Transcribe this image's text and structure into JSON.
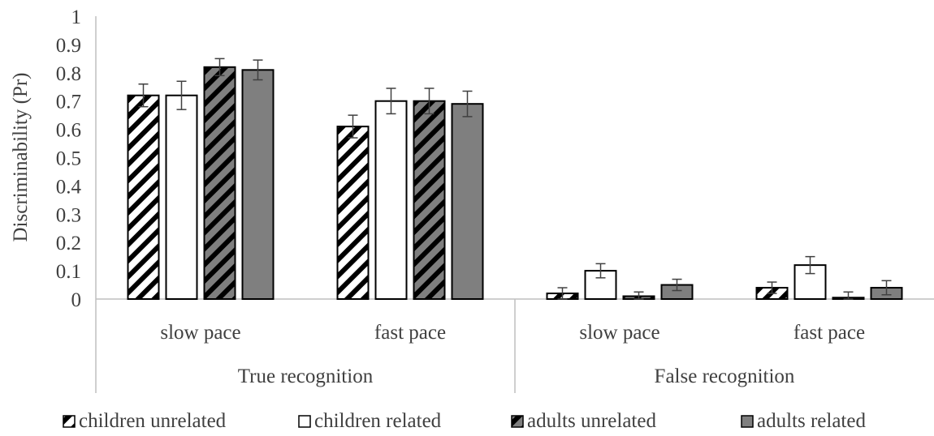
{
  "chart_data": {
    "type": "bar",
    "title": "",
    "xlabel": "",
    "ylabel": "Discriminability (Pr)",
    "ylim": [
      0,
      1
    ],
    "yticks": [
      "0",
      "0.1",
      "0.2",
      "0.3",
      "0.4",
      "0.5",
      "0.6",
      "0.7",
      "0.8",
      "0.9",
      "1"
    ],
    "grid": false,
    "legend_position": "bottom",
    "groups": [
      {
        "label": "True recognition",
        "categories": [
          "slow pace",
          "fast pace"
        ]
      },
      {
        "label": "False recognition",
        "categories": [
          "slow pace",
          "fast pace"
        ]
      }
    ],
    "categories": [
      "slow pace",
      "fast pace",
      "slow pace",
      "fast pace"
    ],
    "series": [
      {
        "name": "children unrelated",
        "pattern": "hatch-white",
        "values": [
          0.72,
          0.61,
          0.02,
          0.04
        ],
        "errors": [
          0.04,
          0.04,
          0.02,
          0.02
        ]
      },
      {
        "name": "children related",
        "pattern": "white",
        "values": [
          0.72,
          0.7,
          0.1,
          0.12
        ],
        "errors": [
          0.05,
          0.045,
          0.025,
          0.03
        ]
      },
      {
        "name": "adults unrelated",
        "pattern": "hatch-gray",
        "values": [
          0.82,
          0.7,
          0.01,
          0.005
        ],
        "errors": [
          0.03,
          0.045,
          0.015,
          0.02
        ]
      },
      {
        "name": "adults related",
        "pattern": "gray",
        "values": [
          0.81,
          0.69,
          0.05,
          0.04
        ],
        "errors": [
          0.035,
          0.045,
          0.02,
          0.025
        ]
      }
    ],
    "colors": {
      "gray_fill": "#7f7f7f",
      "white_fill": "#ffffff",
      "stroke": "#000000",
      "axis": "#bfbfbf",
      "error": "#404040",
      "text": "#404040"
    }
  }
}
